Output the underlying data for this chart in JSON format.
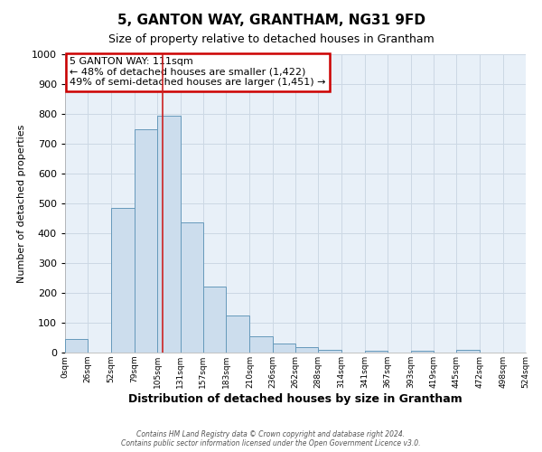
{
  "title": "5, GANTON WAY, GRANTHAM, NG31 9FD",
  "subtitle": "Size of property relative to detached houses in Grantham",
  "xlabel": "Distribution of detached houses by size in Grantham",
  "ylabel": "Number of detached properties",
  "bar_color": "#ccdded",
  "bar_edge_color": "#6699bb",
  "bin_edges": [
    0,
    26,
    52,
    79,
    105,
    131,
    157,
    183,
    210,
    236,
    262,
    288,
    314,
    341,
    367,
    393,
    419,
    445,
    472,
    498,
    524
  ],
  "bin_labels": [
    "0sqm",
    "26sqm",
    "52sqm",
    "79sqm",
    "105sqm",
    "131sqm",
    "157sqm",
    "183sqm",
    "210sqm",
    "236sqm",
    "262sqm",
    "288sqm",
    "314sqm",
    "341sqm",
    "367sqm",
    "393sqm",
    "419sqm",
    "445sqm",
    "472sqm",
    "498sqm",
    "524sqm"
  ],
  "bar_heights": [
    45,
    0,
    485,
    750,
    795,
    435,
    220,
    125,
    55,
    30,
    18,
    10,
    0,
    5,
    0,
    5,
    0,
    8,
    0,
    0
  ],
  "property_line_x": 111,
  "ylim": [
    0,
    1000
  ],
  "annotation_title": "5 GANTON WAY: 111sqm",
  "annotation_line1": "← 48% of detached houses are smaller (1,422)",
  "annotation_line2": "49% of semi-detached houses are larger (1,451) →",
  "annotation_box_color": "#ffffff",
  "annotation_box_edge_color": "#cc0000",
  "vline_color": "#cc2222",
  "grid_color": "#ccd8e4",
  "background_color": "#e8f0f8",
  "footer_line1": "Contains HM Land Registry data © Crown copyright and database right 2024.",
  "footer_line2": "Contains public sector information licensed under the Open Government Licence v3.0."
}
